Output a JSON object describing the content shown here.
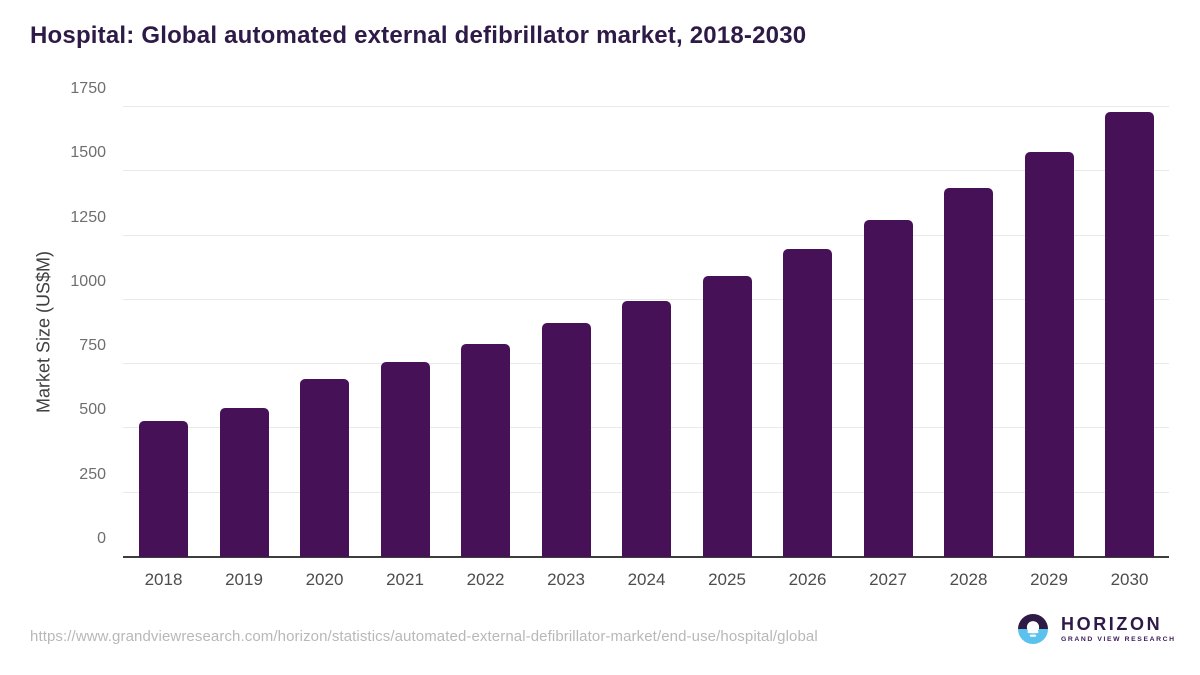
{
  "title": "Hospital: Global automated external defibrillator market, 2018-2030",
  "footer": {
    "source_url": "https://www.grandviewresearch.com/horizon/statistics/automated-external-defibrillator-market/end-use/hospital/global"
  },
  "logo": {
    "name": "HORIZON",
    "subtitle": "GRAND VIEW RESEARCH"
  },
  "colors": {
    "bar": "#461157",
    "title": "#2e1a47",
    "grid": "#e9e9e9",
    "axis_line": "#3d3d3d",
    "logo_purple": "#2e1a47",
    "logo_blue": "#5bc2ee"
  },
  "chart_data": {
    "type": "bar",
    "title": "Hospital: Global automated external defibrillator market, 2018-2030",
    "categories": [
      "2018",
      "2019",
      "2020",
      "2021",
      "2022",
      "2023",
      "2024",
      "2025",
      "2026",
      "2027",
      "2028",
      "2029",
      "2030"
    ],
    "values": [
      528,
      579,
      694,
      758,
      830,
      910,
      995,
      1092,
      1198,
      1311,
      1437,
      1576,
      1731
    ],
    "series_name": "Market Size",
    "xlabel": "",
    "ylabel": "Market Size (US$M)",
    "ylim": [
      0,
      1750
    ],
    "yticks": [
      0,
      250,
      500,
      750,
      1000,
      1250,
      1500,
      1750
    ],
    "grid": true,
    "legend": false,
    "bar_color": "#461157"
  }
}
